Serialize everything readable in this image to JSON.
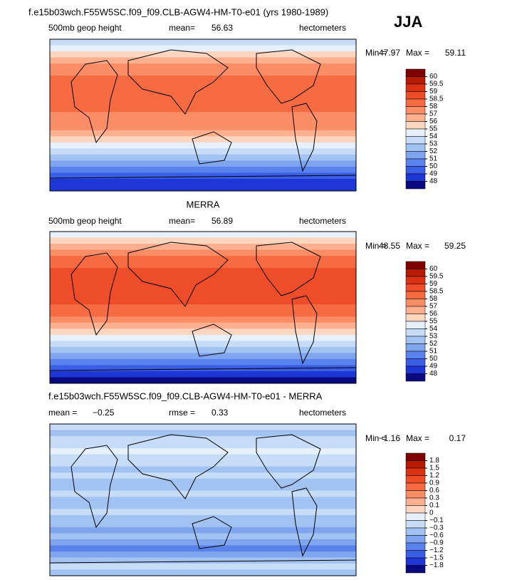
{
  "season": "JJA",
  "panels": [
    {
      "title": "f.e15b03wch.F55W5SC.f09_f09.CLB-AGW4-HM-T0-e01 (yrs 1980-1989)",
      "field": "500mb geop height",
      "mean_label": "mean=",
      "mean": 56.63,
      "units": "hectometers",
      "min_label": "Min =",
      "min": 47.97,
      "max_label": "Max =",
      "max": 59.11,
      "colorbar": {
        "colors": [
          "#7f0000",
          "#b81a00",
          "#dc3214",
          "#ee4d2a",
          "#f76b42",
          "#fa8c66",
          "#fcb08f",
          "#fdd6bf",
          "#e6f0fb",
          "#c6dcf7",
          "#a2c3f2",
          "#7ea5ee",
          "#5a82ec",
          "#3a5ee6",
          "#1f36d6",
          "#0a0a80"
        ],
        "levels": [
          60,
          59.5,
          59,
          58.5,
          58,
          57,
          56,
          55,
          54,
          53,
          52,
          51,
          50,
          49,
          48
        ]
      }
    },
    {
      "title": "MERRA",
      "field": "500mb geop height",
      "mean_label": "mean=",
      "mean": 56.89,
      "units": "hectometers",
      "min_label": "Min =",
      "min": 48.55,
      "max_label": "Max =",
      "max": 59.25,
      "colorbar": {
        "colors": [
          "#7f0000",
          "#b81a00",
          "#dc3214",
          "#ee4d2a",
          "#f76b42",
          "#fa8c66",
          "#fcb08f",
          "#fdd6bf",
          "#e6f0fb",
          "#c6dcf7",
          "#a2c3f2",
          "#7ea5ee",
          "#5a82ec",
          "#3a5ee6",
          "#1f36d6",
          "#0a0a80"
        ],
        "levels": [
          60,
          59.5,
          59,
          58.5,
          58,
          57,
          56,
          55,
          54,
          53,
          52,
          51,
          50,
          49,
          48
        ]
      }
    },
    {
      "title": "f.e15b03wch.F55W5SC.f09_f09.CLB-AGW4-HM-T0-e01 - MERRA",
      "mean_label": "mean =",
      "mean": {
        "value": -0.25,
        "label": "−0.25"
      },
      "rmse_label": "rmse =",
      "rmse": 0.33,
      "units": "hectometers",
      "min_label": "Min =",
      "min": {
        "value": -1.16,
        "label": "−1.16"
      },
      "max_label": "Max =",
      "max": 0.17,
      "colorbar": {
        "colors": [
          "#7f0000",
          "#b81a00",
          "#dc3214",
          "#ee4d2a",
          "#f76b42",
          "#fa8c66",
          "#fcb08f",
          "#fdd6bf",
          "#e6f0fb",
          "#c6dcf7",
          "#a2c3f2",
          "#7ea5ee",
          "#5a82ec",
          "#3a5ee6",
          "#1f36d6",
          "#0a0a80"
        ],
        "levels": [
          1.8,
          1.5,
          1.2,
          0.9,
          0.6,
          0.3,
          0.1,
          0,
          {
            "value": -0.1,
            "label": "−0.1"
          },
          {
            "value": -0.3,
            "label": "−0.3"
          },
          {
            "value": -0.6,
            "label": "−0.6"
          },
          {
            "value": -0.9,
            "label": "−0.9"
          },
          {
            "value": -1.2,
            "label": "−1.2"
          },
          {
            "value": -1.5,
            "label": "−1.5"
          },
          {
            "value": -1.8,
            "label": "−1.8"
          }
        ]
      }
    }
  ]
}
